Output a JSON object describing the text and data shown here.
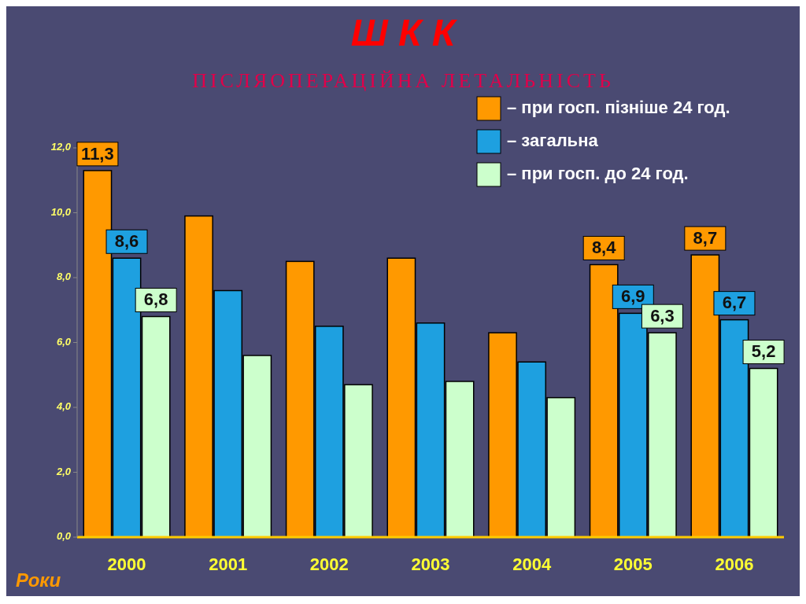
{
  "chart_data": {
    "type": "bar",
    "title": "Ш  К  К",
    "subtitle": "ПІСЛЯОПЕРАЦІЙНА  ЛЕТАЛЬНІСТЬ",
    "xlabel": "Роки",
    "categories": [
      "2000",
      "2001",
      "2002",
      "2003",
      "2004",
      "2005",
      "2006"
    ],
    "series": [
      {
        "name": "– при госп. пізніше 24 год.",
        "color": "#ff9900",
        "values": [
          11.3,
          9.9,
          8.5,
          8.6,
          6.3,
          8.4,
          8.7
        ],
        "value_labels": [
          "11,3",
          null,
          null,
          null,
          null,
          "8,4",
          "8,7"
        ]
      },
      {
        "name": "– загальна",
        "color": "#1ea0e0",
        "values": [
          8.6,
          7.6,
          6.5,
          6.6,
          5.4,
          6.9,
          6.7
        ],
        "value_labels": [
          "8,6",
          null,
          null,
          null,
          null,
          "6,9",
          "6,7"
        ]
      },
      {
        "name": "– при госп. до 24 год.",
        "color": "#ccffcc",
        "values": [
          6.8,
          5.6,
          4.7,
          4.8,
          4.3,
          6.3,
          5.2
        ],
        "value_labels": [
          "6,8",
          null,
          null,
          null,
          null,
          "6,3",
          "5,2"
        ]
      }
    ],
    "ylim": [
      0,
      12
    ],
    "yticks": [
      {
        "value": 0,
        "label": "0,0"
      },
      {
        "value": 2,
        "label": "2,0"
      },
      {
        "value": 4,
        "label": "4,0"
      },
      {
        "value": 6,
        "label": "6,0"
      },
      {
        "value": 8,
        "label": "8,0"
      },
      {
        "value": 10,
        "label": "10,0"
      },
      {
        "value": 12,
        "label": "12,0"
      }
    ],
    "grid": false,
    "legend": "top right"
  }
}
